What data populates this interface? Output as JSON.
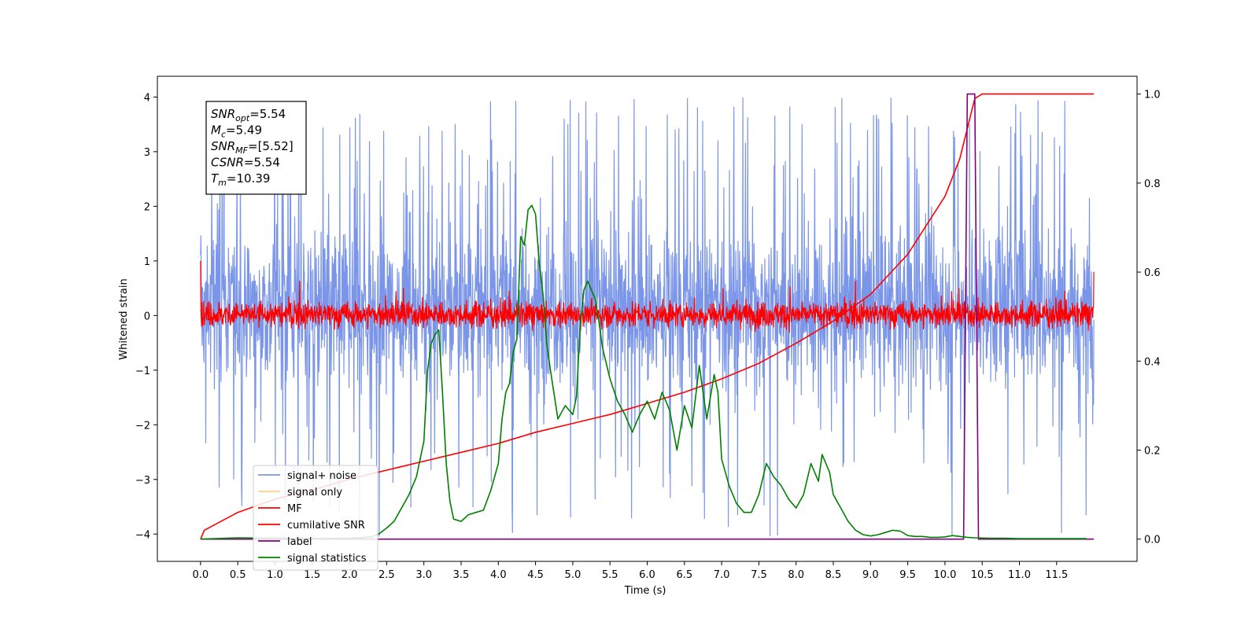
{
  "chart_data": {
    "type": "line",
    "xlabel": "Time (s)",
    "ylabel": "Whitened strain",
    "xlim": [
      -0.58,
      12.58
    ],
    "ylim": [
      -4.5,
      4.38
    ],
    "y2lim": [
      -0.05,
      1.04
    ],
    "x_ticks": [
      "0.0",
      "0.5",
      "1.0",
      "1.5",
      "2.0",
      "2.5",
      "3.0",
      "3.5",
      "4.0",
      "4.5",
      "5.0",
      "5.5",
      "6.0",
      "6.5",
      "7.0",
      "7.5",
      "8.0",
      "8.5",
      "9.0",
      "9.5",
      "10.0",
      "10.5",
      "11.0",
      "11.5"
    ],
    "y_ticks": [
      "4",
      "3",
      "2",
      "1",
      "0",
      "−1",
      "−2",
      "−3",
      "−4"
    ],
    "y2_ticks": [
      "1.0",
      "0.8",
      "0.6",
      "0.4",
      "0.2",
      "0.0"
    ],
    "info_box": [
      {
        "base": "SNR",
        "sub": "opt",
        "value": "=5.54"
      },
      {
        "base": "M",
        "sub": "c",
        "value": "=5.49"
      },
      {
        "base": "SNR",
        "sub": "MF",
        "value": "=[5.52]"
      },
      {
        "base": "CSNR",
        "sub": "",
        "value": "=5.54"
      },
      {
        "base": "T",
        "sub": "m",
        "value": "=10.39"
      }
    ],
    "legend": {
      "placement": "lower-left",
      "entries": [
        {
          "label": "signal+ noise",
          "color": "#7b96e8"
        },
        {
          "label": "signal only",
          "color": "#ffd28a"
        },
        {
          "label": "MF",
          "color": "#ff0000"
        },
        {
          "label": "cumilative SNR",
          "color": "#ff0000"
        },
        {
          "label": "label",
          "color": "#800080"
        },
        {
          "label": "signal statistics",
          "color": "#008000"
        }
      ]
    },
    "series": [
      {
        "name": "signal+ noise",
        "axis": "left",
        "kind": "noise",
        "color": "#7b96e8",
        "x_range": [
          0.0,
          12.0
        ],
        "band": [
          -1.7,
          2.0
        ],
        "spike_max": 4.0,
        "spike_min": -4.1
      },
      {
        "name": "MF",
        "axis": "left",
        "kind": "noise",
        "color": "#ff0000",
        "x_range": [
          0.0,
          12.0
        ],
        "band": [
          -0.28,
          0.32
        ],
        "start": 1.0,
        "end": 0.8
      },
      {
        "name": "cumilative SNR",
        "axis": "right",
        "color": "#ff0000",
        "x": [
          0.0,
          0.05,
          0.5,
          1.0,
          1.5,
          2.0,
          2.5,
          3.0,
          3.5,
          4.0,
          4.5,
          5.0,
          5.5,
          6.0,
          6.5,
          7.0,
          7.5,
          8.0,
          8.5,
          9.0,
          9.5,
          10.0,
          10.2,
          10.4,
          10.5,
          11.0,
          11.5,
          12.0
        ],
        "y": [
          0.0,
          0.02,
          0.06,
          0.09,
          0.11,
          0.135,
          0.155,
          0.175,
          0.195,
          0.215,
          0.24,
          0.26,
          0.28,
          0.305,
          0.33,
          0.36,
          0.395,
          0.44,
          0.49,
          0.55,
          0.64,
          0.77,
          0.855,
          0.99,
          1.0,
          1.0,
          1.0,
          1.0
        ]
      },
      {
        "name": "label",
        "axis": "right",
        "color": "#800080",
        "x": [
          0.0,
          10.25,
          10.3,
          10.35,
          10.4,
          10.45,
          12.0
        ],
        "y": [
          0.0,
          0.0,
          1.0,
          1.0,
          1.0,
          0.0,
          0.0
        ]
      },
      {
        "name": "signal statistics",
        "axis": "right",
        "color": "#008000",
        "x": [
          0.0,
          0.5,
          1.0,
          1.5,
          2.0,
          2.3,
          2.4,
          2.5,
          2.6,
          2.7,
          2.8,
          2.9,
          3.0,
          3.05,
          3.1,
          3.15,
          3.2,
          3.25,
          3.3,
          3.35,
          3.4,
          3.5,
          3.6,
          3.7,
          3.8,
          3.9,
          4.0,
          4.05,
          4.1,
          4.15,
          4.2,
          4.25,
          4.3,
          4.35,
          4.4,
          4.45,
          4.5,
          4.55,
          4.6,
          4.65,
          4.7,
          4.8,
          4.9,
          5.0,
          5.05,
          5.1,
          5.15,
          5.2,
          5.25,
          5.3,
          5.35,
          5.4,
          5.5,
          5.6,
          5.7,
          5.8,
          5.9,
          6.0,
          6.1,
          6.2,
          6.3,
          6.4,
          6.5,
          6.6,
          6.7,
          6.8,
          6.9,
          6.95,
          7.0,
          7.1,
          7.2,
          7.3,
          7.4,
          7.5,
          7.6,
          7.7,
          7.8,
          7.9,
          8.0,
          8.1,
          8.2,
          8.3,
          8.35,
          8.4,
          8.45,
          8.5,
          8.6,
          8.7,
          8.8,
          8.9,
          9.0,
          9.1,
          9.2,
          9.3,
          9.4,
          9.5,
          9.6,
          9.7,
          9.8,
          9.9,
          10.0,
          10.1,
          10.2,
          10.3,
          10.4,
          10.6,
          10.8,
          11.0,
          11.5,
          11.9
        ],
        "y": [
          0.0,
          0.003,
          0.002,
          0.001,
          0.002,
          0.005,
          0.012,
          0.025,
          0.04,
          0.07,
          0.1,
          0.14,
          0.22,
          0.38,
          0.44,
          0.46,
          0.47,
          0.33,
          0.17,
          0.085,
          0.045,
          0.04,
          0.055,
          0.06,
          0.065,
          0.11,
          0.17,
          0.27,
          0.33,
          0.35,
          0.42,
          0.45,
          0.68,
          0.66,
          0.74,
          0.75,
          0.73,
          0.62,
          0.55,
          0.44,
          0.38,
          0.27,
          0.3,
          0.28,
          0.32,
          0.48,
          0.56,
          0.58,
          0.56,
          0.54,
          0.49,
          0.43,
          0.36,
          0.31,
          0.28,
          0.24,
          0.28,
          0.31,
          0.27,
          0.33,
          0.29,
          0.2,
          0.3,
          0.25,
          0.39,
          0.27,
          0.37,
          0.33,
          0.18,
          0.12,
          0.08,
          0.06,
          0.06,
          0.1,
          0.17,
          0.14,
          0.12,
          0.09,
          0.07,
          0.1,
          0.17,
          0.13,
          0.19,
          0.17,
          0.15,
          0.1,
          0.07,
          0.04,
          0.02,
          0.01,
          0.007,
          0.01,
          0.015,
          0.02,
          0.018,
          0.008,
          0.006,
          0.006,
          0.004,
          0.004,
          0.005,
          0.008,
          0.006,
          0.004,
          0.003,
          0.002,
          0.002,
          0.001,
          0.001,
          0.001
        ]
      }
    ],
    "grid": false
  }
}
